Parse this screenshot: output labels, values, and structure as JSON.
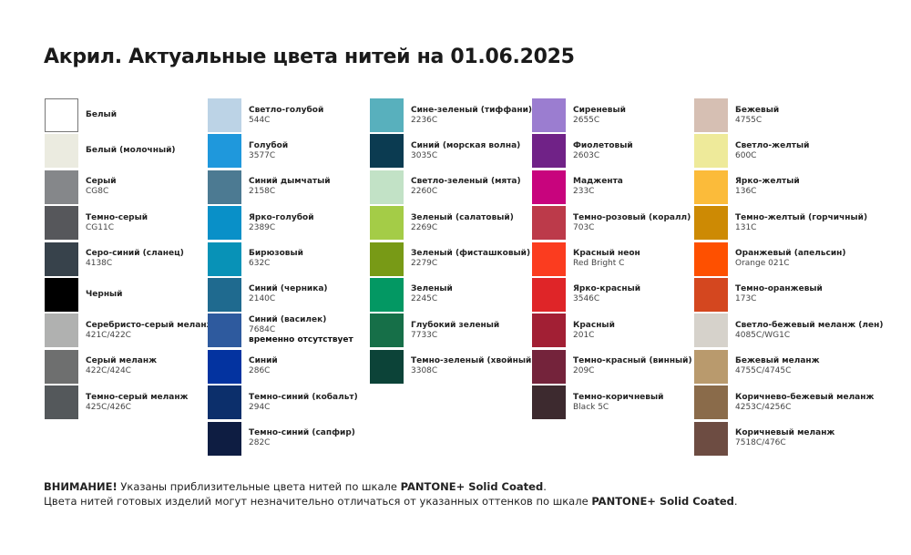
{
  "title": "Акрил. Актуальные цвета нитей на 01.06.2025",
  "columns": [
    [
      {
        "name": "Белый",
        "code": "",
        "color": "#ffffff"
      },
      {
        "name": "Белый (молочный)",
        "code": "",
        "color": "#ebebe0"
      },
      {
        "name": "Серый",
        "code": "CG8C",
        "color": "#85878a"
      },
      {
        "name": "Темно-серый",
        "code": "CG11C",
        "color": "#56575b"
      },
      {
        "name": "Серо-синий (сланец)",
        "code": "4138C",
        "color": "#37424b"
      },
      {
        "name": "Черный",
        "code": "",
        "color": "#000000"
      },
      {
        "name": "Серебристо-серый меланж",
        "code": "421C/422C",
        "color": "#b0b1b0"
      },
      {
        "name": "Серый меланж",
        "code": "422C/424C",
        "color": "#6e6f6f"
      },
      {
        "name": "Темно-серый меланж",
        "code": "425C/426C",
        "color": "#54585b"
      }
    ],
    [
      {
        "name": "Светло-голубой",
        "code": "544C",
        "color": "#bcd3e6"
      },
      {
        "name": "Голубой",
        "code": "3577C",
        "color": "#1f98dc"
      },
      {
        "name": "Синий дымчатый",
        "code": "2158C",
        "color": "#4c7a92"
      },
      {
        "name": "Ярко-голубой",
        "code": "2389C",
        "color": "#0990c8"
      },
      {
        "name": "Бирюзовый",
        "code": "632C",
        "color": "#0892b7"
      },
      {
        "name": "Синий (черника)",
        "code": "2140C",
        "color": "#1f6a8f"
      },
      {
        "name": "Синий (василек)",
        "code": "7684C",
        "note": "временно отсутствует",
        "color": "#2e5a9e"
      },
      {
        "name": "Синий",
        "code": "286C",
        "color": "#0333a0"
      },
      {
        "name": "Темно-синий (кобальт)",
        "code": "294C",
        "color": "#0c2f6b"
      },
      {
        "name": "Темно-синий (сапфир)",
        "code": "282C",
        "color": "#0e1d42"
      }
    ],
    [
      {
        "name": "Сине-зеленый (тиффани)",
        "code": "2236C",
        "color": "#58b0bd"
      },
      {
        "name": "Синий (морская волна)",
        "code": "3035C",
        "color": "#0b3b51"
      },
      {
        "name": "Светло-зеленый (мята)",
        "code": "2260C",
        "color": "#c2e2c6"
      },
      {
        "name": "Зеленый (салатовый)",
        "code": "2269C",
        "color": "#a4cc47"
      },
      {
        "name": "Зеленый (фисташковый)",
        "code": "2279C",
        "color": "#789a16"
      },
      {
        "name": "Зеленый",
        "code": "2245C",
        "color": "#039863"
      },
      {
        "name": "Глубокий зеленый",
        "code": "7733C",
        "color": "#166f48"
      },
      {
        "name": "Темно-зеленый (хвойный)",
        "code": "3308C",
        "color": "#0c4338"
      }
    ],
    [
      {
        "name": "Сиреневый",
        "code": "2655C",
        "color": "#9b7dd0"
      },
      {
        "name": "Фиолетовый",
        "code": "2603C",
        "color": "#702287"
      },
      {
        "name": "Маджента",
        "code": "233C",
        "color": "#c8047d"
      },
      {
        "name": "Темно-розовый (коралл)",
        "code": "703C",
        "color": "#bc3a4a"
      },
      {
        "name": "Красный неон",
        "code": "Red Bright C",
        "color": "#fb3c1f"
      },
      {
        "name": "Ярко-красный",
        "code": "3546C",
        "color": "#df2528"
      },
      {
        "name": "Красный",
        "code": "201C",
        "color": "#a21f34"
      },
      {
        "name": "Темно-красный (винный)",
        "code": "209C",
        "color": "#74233b"
      },
      {
        "name": "Темно-коричневый",
        "code": "Black 5C",
        "color": "#3d2a2f"
      }
    ],
    [
      {
        "name": "Бежевый",
        "code": "4755C",
        "color": "#d6bfb3"
      },
      {
        "name": "Светло-желтый",
        "code": "600C",
        "color": "#eeea9a"
      },
      {
        "name": "Ярко-желтый",
        "code": "136C",
        "color": "#fbbb3a"
      },
      {
        "name": "Темно-желтый (горчичный)",
        "code": "131C",
        "color": "#cd8a04"
      },
      {
        "name": "Оранжевый (апельсин)",
        "code": "Orange 021C",
        "color": "#fe5000"
      },
      {
        "name": "Темно-оранжевый",
        "code": "173C",
        "color": "#d4471f"
      },
      {
        "name": "Светло-бежевый меланж (лен)",
        "code": "4085C/WG1C",
        "color": "#d6d2cb"
      },
      {
        "name": "Бежевый меланж",
        "code": "4755C/4745C",
        "color": "#b99a6d"
      },
      {
        "name": "Коричнево-бежевый меланж",
        "code": "4253C/4256C",
        "color": "#8a6b4a"
      },
      {
        "name": "Коричневый меланж",
        "code": "7518C/476C",
        "color": "#6d4c42"
      }
    ]
  ],
  "footer": {
    "line1_bold": "ВНИМАНИЕ!",
    "line1_text": " Указаны приблизительные цвета нитей по шкале ",
    "line1_pantone": "PANTONE+ Solid Coated",
    "line1_end": ".",
    "line2_text": "Цвета нитей готовых изделий могут незначительно отличаться от указанных оттенков по шкале ",
    "line2_pantone": "PANTONE+ Solid Coated",
    "line2_end": "."
  }
}
